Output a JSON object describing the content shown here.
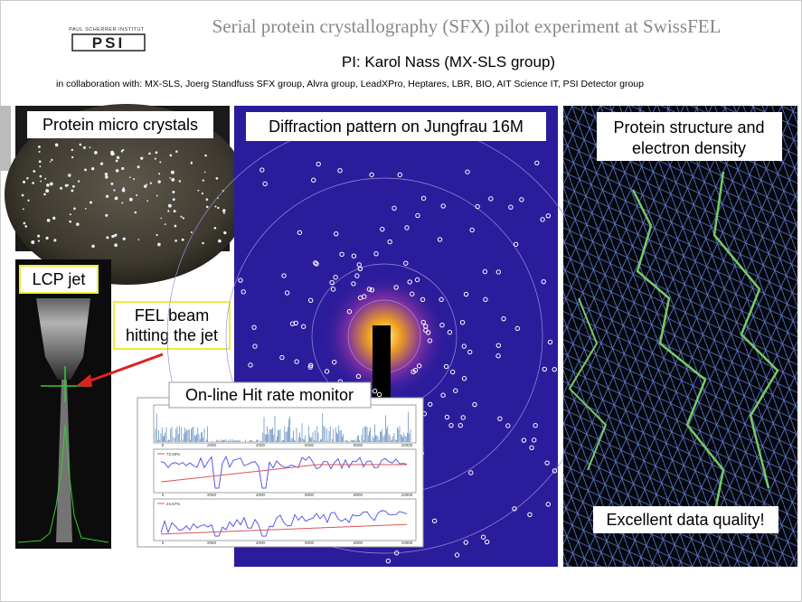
{
  "logo": {
    "institute": "PAUL SCHERRER INSTITUT",
    "mark": "PSI"
  },
  "header": {
    "title": "Serial protein crystallography (SFX) pilot experiment at SwissFEL",
    "pi": "PI: Karol Nass  (MX-SLS group)",
    "collaboration": "in collaboration with: MX-SLS, Joerg Standfuss SFX group, Alvra group, LeadXPro, Heptares, LBR, BIO, AIT Science IT, PSI Detector group"
  },
  "panels": {
    "crystals": "Protein micro crystals",
    "jet": "LCP jet",
    "beam": [
      "FEL beam",
      "hitting the jet"
    ],
    "diffraction": "Diffraction pattern on Jungfrau 16M",
    "structure": [
      "Protein structure and",
      "electron density"
    ],
    "quality": "Excellent data quality!",
    "monitor": "On-line Hit rate monitor"
  },
  "monitor": {
    "xticks": [
      "0",
      "2000",
      "4000",
      "6000",
      "8000",
      "10000"
    ],
    "legend": [
      "72.60%",
      "24.67%"
    ]
  }
}
